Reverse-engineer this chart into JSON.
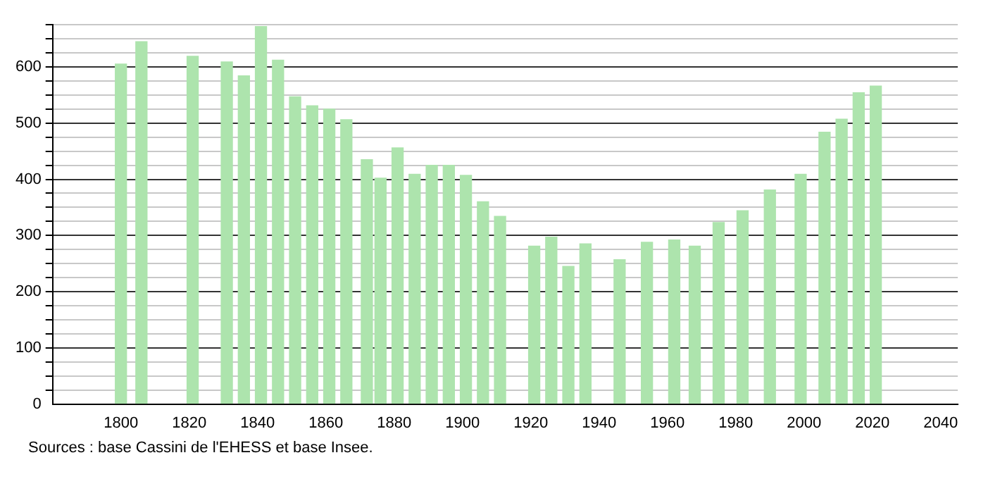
{
  "chart_data": {
    "type": "bar",
    "x": [
      1800,
      1806,
      1821,
      1831,
      1836,
      1841,
      1846,
      1851,
      1856,
      1861,
      1866,
      1872,
      1876,
      1881,
      1886,
      1891,
      1896,
      1901,
      1906,
      1911,
      1921,
      1926,
      1931,
      1936,
      1946,
      1954,
      1962,
      1968,
      1975,
      1982,
      1990,
      1999,
      2006,
      2011,
      2016,
      2021
    ],
    "values": [
      605,
      645,
      619,
      609,
      584,
      672,
      612,
      547,
      531,
      525,
      506,
      435,
      402,
      456,
      409,
      425,
      425,
      407,
      360,
      334,
      281,
      297,
      245,
      285,
      257,
      288,
      292,
      281,
      323,
      344,
      381,
      409,
      484,
      507,
      554,
      566
    ],
    "color": "#ade4ad",
    "xlim": [
      1780,
      2045
    ],
    "xticks": [
      1800,
      1820,
      1840,
      1860,
      1880,
      1900,
      1920,
      1940,
      1960,
      1980,
      2000,
      2020,
      2040
    ],
    "ylim": [
      0,
      675
    ],
    "yticks": [
      0,
      {
        "value": 25,
        "label": null
      },
      {
        "value": 50,
        "label": null
      },
      {
        "value": 75,
        "label": null
      },
      100,
      {
        "value": 125,
        "label": null
      },
      {
        "value": 150,
        "label": null
      },
      {
        "value": 175,
        "label": null
      },
      200,
      {
        "value": 225,
        "label": null
      },
      {
        "value": 250,
        "label": null
      },
      {
        "value": 275,
        "label": null
      },
      300,
      {
        "value": 325,
        "label": null
      },
      {
        "value": 350,
        "label": null
      },
      {
        "value": 375,
        "label": null
      },
      400,
      {
        "value": 425,
        "label": null
      },
      {
        "value": 450,
        "label": null
      },
      {
        "value": 475,
        "label": null
      },
      500,
      {
        "value": 525,
        "label": null
      },
      {
        "value": 550,
        "label": null
      },
      {
        "value": 575,
        "label": null
      },
      600,
      {
        "value": 625,
        "label": null
      },
      {
        "value": 650,
        "label": null
      },
      {
        "value": 675,
        "label": null
      }
    ],
    "grid": "y",
    "legend": false,
    "annotations": [
      "Sources : base Cassini de l'EHESS et base Insee."
    ]
  }
}
